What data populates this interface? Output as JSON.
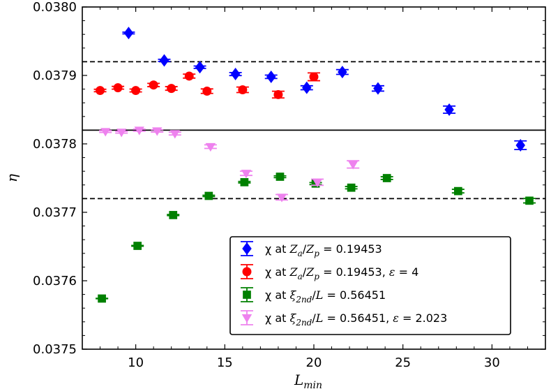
{
  "chart_data": {
    "type": "scatter",
    "xlabel_main": "L",
    "xlabel_sub": "min",
    "ylabel": "η",
    "xlim": [
      7,
      33
    ],
    "ylim": [
      0.0375,
      0.038
    ],
    "xticks": [
      10,
      15,
      20,
      25,
      30
    ],
    "xtick_labels": [
      "10",
      "15",
      "20",
      "25",
      "30"
    ],
    "yticks": [
      0.0375,
      0.0376,
      0.0377,
      0.0378,
      0.0379,
      0.038
    ],
    "ytick_labels": [
      "0.0375",
      "0.0376",
      "0.0377",
      "0.0378",
      "0.0379",
      "0.0380"
    ],
    "reference_lines": [
      {
        "y": 0.03792,
        "style": "dashed"
      },
      {
        "y": 0.03782,
        "style": "solid"
      },
      {
        "y": 0.03772,
        "style": "dashed"
      }
    ],
    "series": [
      {
        "name": "chi-za-zp",
        "color": "#0000ff",
        "marker": "diamond",
        "legend_parts": [
          "χ at ",
          "Z",
          "a",
          "/",
          "Z",
          "p",
          " = 0.19453"
        ],
        "x": [
          9.6,
          11.6,
          13.6,
          15.6,
          17.6,
          19.6,
          21.6,
          23.6,
          27.6,
          31.6
        ],
        "y": [
          0.037962,
          0.037922,
          0.037912,
          0.037902,
          0.037898,
          0.037882,
          0.037905,
          0.037881,
          0.03785,
          0.037798
        ],
        "err": [
          1.3e-06,
          1.6e-06,
          1.8e-06,
          2.2e-06,
          2.5e-06,
          2.9e-06,
          3.5e-06,
          3.9e-06,
          5.2e-06,
          6.3e-06
        ]
      },
      {
        "name": "chi-za-zp-eps4",
        "color": "#ff0000",
        "marker": "circle",
        "legend_parts": [
          "χ at ",
          "Z",
          "a",
          "/",
          "Z",
          "p",
          " = 0.19453, ",
          "ε",
          " = 4"
        ],
        "x": [
          8,
          9,
          10,
          11,
          12,
          13,
          14,
          16,
          18,
          20
        ],
        "y": [
          0.037878,
          0.037882,
          0.037878,
          0.037886,
          0.037881,
          0.037899,
          0.037877,
          0.037879,
          0.037872,
          0.037898
        ],
        "err": [
          1.8e-06,
          2e-06,
          2.1e-06,
          2.4e-06,
          2.6e-06,
          2.9e-06,
          3.3e-06,
          4e-06,
          4.9e-06,
          5.7e-06
        ]
      },
      {
        "name": "chi-xi-l",
        "color": "#008000",
        "marker": "square",
        "legend_parts": [
          "χ at ",
          "ξ",
          "2nd",
          "/",
          "L",
          "",
          " = 0.56451"
        ],
        "x": [
          8.1,
          10.1,
          12.1,
          14.1,
          16.1,
          18.1,
          20.1,
          22.1,
          24.1,
          28.1,
          32.1
        ],
        "y": [
          0.037574,
          0.037651,
          0.037696,
          0.037724,
          0.037744,
          0.037752,
          0.037742,
          0.037736,
          0.03775,
          0.037731,
          0.037717
        ],
        "err": [
          3e-07,
          6e-07,
          8e-07,
          1e-06,
          1.1e-06,
          1.3e-06,
          1.5e-06,
          1.7e-06,
          2e-06,
          2.6e-06,
          3.3e-06
        ]
      },
      {
        "name": "chi-xi-l-eps",
        "color": "#ee82ee",
        "marker": "triangle-down",
        "legend_parts": [
          "χ at ",
          "ξ",
          "2nd",
          "/",
          "L",
          "",
          " = 0.56451, ",
          "ε",
          " = 2.023"
        ],
        "x": [
          8.3,
          9.2,
          10.2,
          11.2,
          12.2,
          14.2,
          16.2,
          18.2,
          20.2,
          22.2
        ],
        "y": [
          0.037818,
          0.037817,
          0.03782,
          0.037819,
          0.037815,
          0.037796,
          0.037757,
          0.037722,
          0.037744,
          0.03777
        ],
        "err": [
          1.3e-06,
          1.3e-06,
          1.5e-06,
          1.7e-06,
          2e-06,
          2.6e-06,
          3.1e-06,
          4e-06,
          4.5e-06,
          5.3e-06
        ]
      }
    ]
  }
}
